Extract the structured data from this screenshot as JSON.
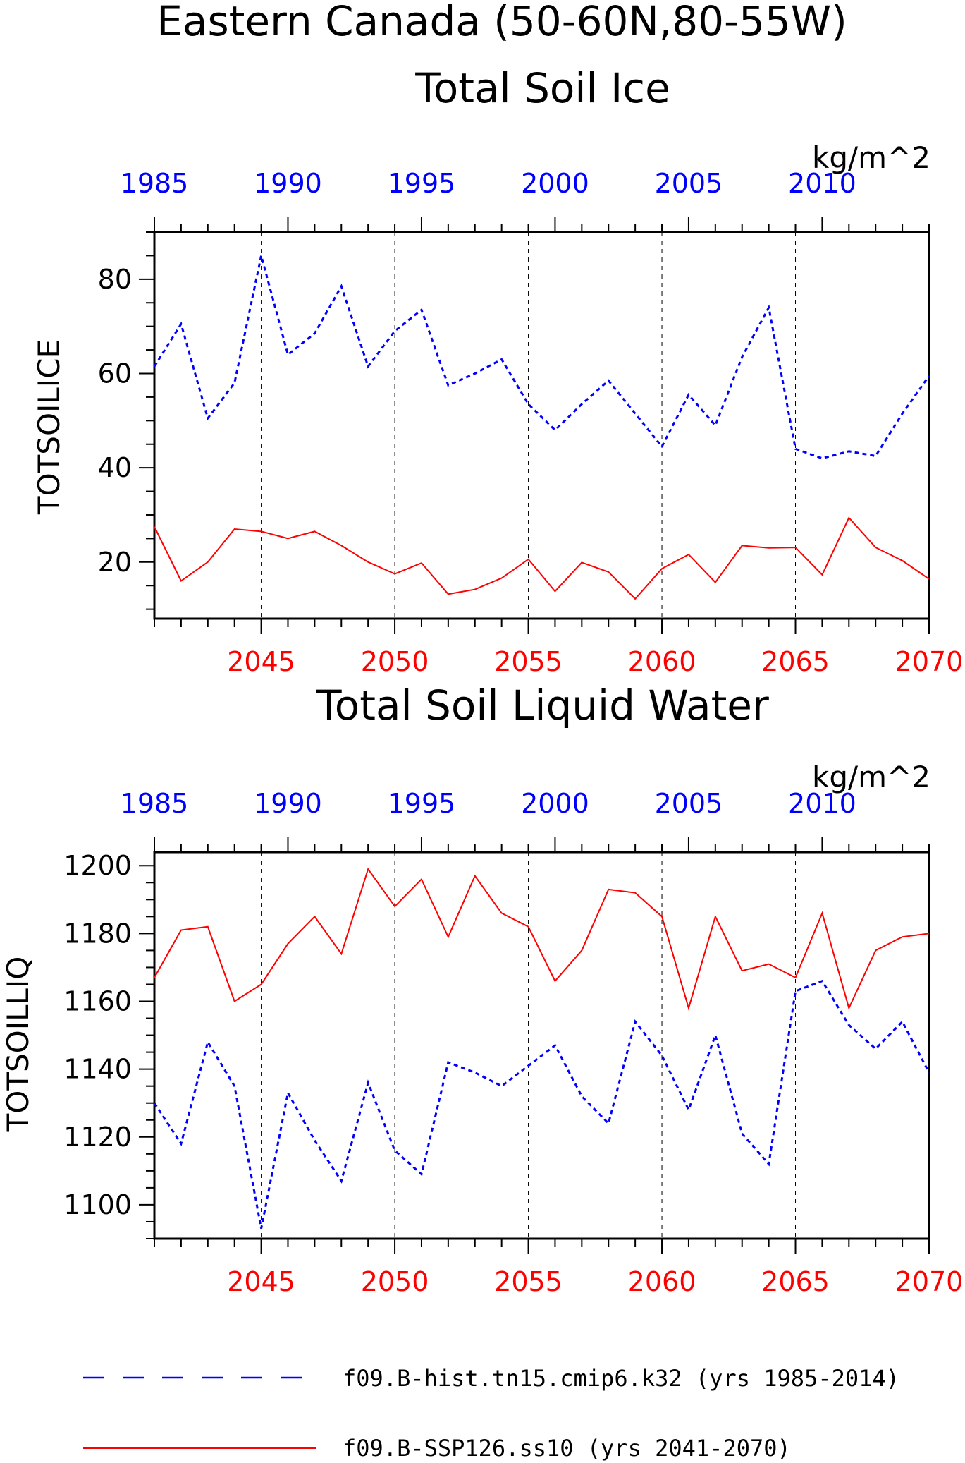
{
  "page": {
    "title_line1": "Eastern Canada (50-60N,80-55W)",
    "colors": {
      "hist": "#0000ff",
      "ssp": "#ff0000",
      "axis": "#000000"
    }
  },
  "chart_data": [
    {
      "type": "line",
      "title": "Total Soil Ice",
      "ylabel": "TOTSOILICE",
      "units": "kg/m^2",
      "ylim": [
        8,
        90
      ],
      "yticks": [
        20,
        40,
        60,
        80
      ],
      "x_bottom": {
        "label": "",
        "lim": [
          2041,
          2070
        ],
        "ticks": [
          2045,
          2050,
          2055,
          2060,
          2065,
          2070
        ]
      },
      "x_top": {
        "label": "",
        "lim": [
          1985,
          2014
        ],
        "ticks": [
          1985,
          1990,
          1995,
          2000,
          2005,
          2010
        ]
      },
      "grid": "dashed vertical at bottom ticks",
      "series": [
        {
          "name": "f09.B-hist.tn15.cmip6.k32 (yrs 1985-2014)",
          "axis": "top",
          "style": "dashed",
          "color": "#0000ff",
          "x": [
            1985,
            1986,
            1987,
            1988,
            1989,
            1990,
            1991,
            1992,
            1993,
            1994,
            1995,
            1996,
            1997,
            1998,
            1999,
            2000,
            2001,
            2002,
            2003,
            2004,
            2005,
            2006,
            2007,
            2008,
            2009,
            2010,
            2011,
            2012,
            2013,
            2014
          ],
          "values": [
            61.5,
            70.5,
            50.5,
            58,
            85,
            64,
            68.5,
            78.5,
            61.5,
            69,
            73.5,
            57.5,
            60,
            63,
            53.5,
            48,
            53.5,
            58.5,
            51.5,
            44.5,
            55.5,
            49,
            63.5,
            74,
            44,
            42,
            43.5,
            42.5,
            51.5,
            59.5
          ]
        },
        {
          "name": "f09.B-SSP126.ss10 (yrs 2041-2070)",
          "axis": "bottom",
          "style": "solid",
          "color": "#ff0000",
          "x": [
            2041,
            2042,
            2043,
            2044,
            2045,
            2046,
            2047,
            2048,
            2049,
            2050,
            2051,
            2052,
            2053,
            2054,
            2055,
            2056,
            2057,
            2058,
            2059,
            2060,
            2061,
            2062,
            2063,
            2064,
            2065,
            2066,
            2067,
            2068,
            2069,
            2070
          ],
          "values": [
            27.5,
            16,
            20,
            27,
            26.5,
            25,
            26.5,
            23.5,
            20,
            17.5,
            19.8,
            13.2,
            14.2,
            16.6,
            20.6,
            13.8,
            19.9,
            17.9,
            12.2,
            18.6,
            21.6,
            15.7,
            23.5,
            23,
            23.1,
            17.3,
            29.4,
            23.1,
            20.3,
            16.4
          ]
        }
      ]
    },
    {
      "type": "line",
      "title": "Total Soil Liquid Water",
      "ylabel": "TOTSOILLIQ",
      "units": "kg/m^2",
      "ylim": [
        1090,
        1204
      ],
      "yticks": [
        1100,
        1120,
        1140,
        1160,
        1180,
        1200
      ],
      "x_bottom": {
        "label": "",
        "lim": [
          2041,
          2070
        ],
        "ticks": [
          2045,
          2050,
          2055,
          2060,
          2065,
          2070
        ]
      },
      "x_top": {
        "label": "",
        "lim": [
          1985,
          2014
        ],
        "ticks": [
          1985,
          1990,
          1995,
          2000,
          2005,
          2010
        ]
      },
      "grid": "dashed vertical at bottom ticks",
      "series": [
        {
          "name": "f09.B-hist.tn15.cmip6.k32 (yrs 1985-2014)",
          "axis": "top",
          "style": "dashed",
          "color": "#0000ff",
          "x": [
            1985,
            1986,
            1987,
            1988,
            1989,
            1990,
            1991,
            1992,
            1993,
            1994,
            1995,
            1996,
            1997,
            1998,
            1999,
            2000,
            2001,
            2002,
            2003,
            2004,
            2005,
            2006,
            2007,
            2008,
            2009,
            2010,
            2011,
            2012,
            2013,
            2014
          ],
          "values": [
            1130,
            1118,
            1148,
            1135,
            1093,
            1133,
            1119,
            1107,
            1136,
            1116,
            1109,
            1142,
            1139,
            1135,
            1141,
            1147,
            1132,
            1124,
            1154,
            1144,
            1128,
            1150,
            1121,
            1112,
            1163,
            1166,
            1153,
            1146,
            1154,
            1139
          ]
        },
        {
          "name": "f09.B-SSP126.ss10 (yrs 2041-2070)",
          "axis": "bottom",
          "style": "solid",
          "color": "#ff0000",
          "x": [
            2041,
            2042,
            2043,
            2044,
            2045,
            2046,
            2047,
            2048,
            2049,
            2050,
            2051,
            2052,
            2053,
            2054,
            2055,
            2056,
            2057,
            2058,
            2059,
            2060,
            2061,
            2062,
            2063,
            2064,
            2065,
            2066,
            2067,
            2068,
            2069,
            2070
          ],
          "values": [
            1167,
            1181,
            1182,
            1160,
            1165,
            1177,
            1185,
            1174,
            1199,
            1188,
            1196,
            1179,
            1197,
            1186,
            1182,
            1166,
            1175,
            1193,
            1192,
            1185,
            1158,
            1185,
            1169,
            1171,
            1167,
            1186,
            1158,
            1175,
            1179,
            1180
          ]
        }
      ]
    }
  ],
  "legend": [
    {
      "label": "f09.B-hist.tn15.cmip6.k32 (yrs 1985-2014)",
      "style": "dashed",
      "color": "#0000ff"
    },
    {
      "label": "f09.B-SSP126.ss10 (yrs 2041-2070)",
      "style": "solid",
      "color": "#ff0000"
    }
  ]
}
